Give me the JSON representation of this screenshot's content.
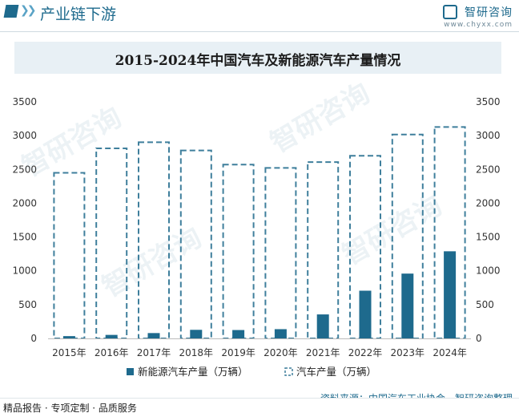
{
  "header": {
    "section_title": "产业链下游",
    "brand_name": "智研咨询",
    "brand_url": "www.chyxx.com"
  },
  "chart_data": {
    "type": "bar",
    "title": "2015-2024年中国汽车及新能源汽车产量情况",
    "categories": [
      "2015年",
      "2016年",
      "2017年",
      "2018年",
      "2019年",
      "2020年",
      "2021年",
      "2022年",
      "2023年",
      "2024年"
    ],
    "series": [
      {
        "name": "新能源汽车产量（万辆）",
        "values": [
          34,
          52,
          79,
          127,
          124,
          137,
          355,
          706,
          959,
          1289
        ],
        "style": "solid",
        "color": "#1e6a8d"
      },
      {
        "name": "汽车产量（万辆）",
        "values": [
          2450,
          2812,
          2902,
          2781,
          2572,
          2523,
          2608,
          2702,
          3016,
          3128
        ],
        "style": "dashed",
        "color": "#3f7f9c"
      }
    ],
    "ylim": [
      0,
      3500
    ],
    "yticks": [
      0,
      500,
      1000,
      1500,
      2000,
      2500,
      3000,
      3500
    ],
    "xlabel": "",
    "ylabel": ""
  },
  "footer": {
    "left": "精品报告 · 专项定制 · 品质服务",
    "source": "资料来源：中国汽车工业协会、智研咨询整理",
    "watermark": "智研咨询"
  }
}
